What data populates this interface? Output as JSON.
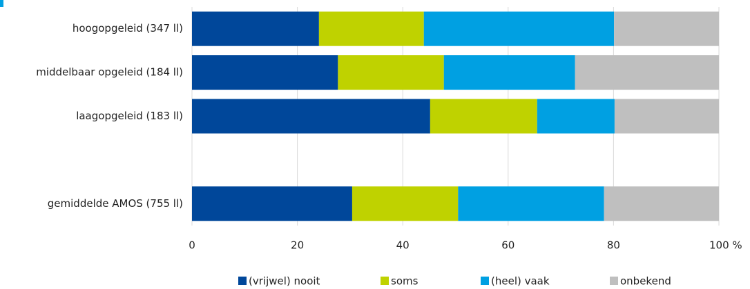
{
  "chart_data": {
    "type": "stacked_barh",
    "categories": [
      "hoogopgeleid (347 ll)",
      "middelbaar opgeleid (184 ll)",
      "laagopgeleid (183 ll)",
      null,
      "gemiddelde AMOS (755 ll)"
    ],
    "series": [
      {
        "name": "(vrijwel) nooit",
        "color": "#00479a",
        "values": [
          24.1,
          27.7,
          45.2,
          null,
          30.4
        ]
      },
      {
        "name": "soms",
        "color": "#bfd200",
        "values": [
          19.9,
          20.1,
          20.3,
          null,
          20.1
        ]
      },
      {
        "name": "(heel) vaak",
        "color": "#00a0e2",
        "values": [
          36.1,
          24.9,
          14.7,
          null,
          27.7
        ]
      },
      {
        "name": "onbekend",
        "color": "#bfbfbf",
        "values": [
          19.9,
          27.3,
          19.8,
          null,
          21.8
        ]
      }
    ],
    "xlim": [
      0,
      100
    ],
    "xticks": [
      0,
      20,
      40,
      60,
      80,
      {
        "value": 100,
        "label": "100 %"
      }
    ],
    "grid": true,
    "legend": "bottom"
  }
}
